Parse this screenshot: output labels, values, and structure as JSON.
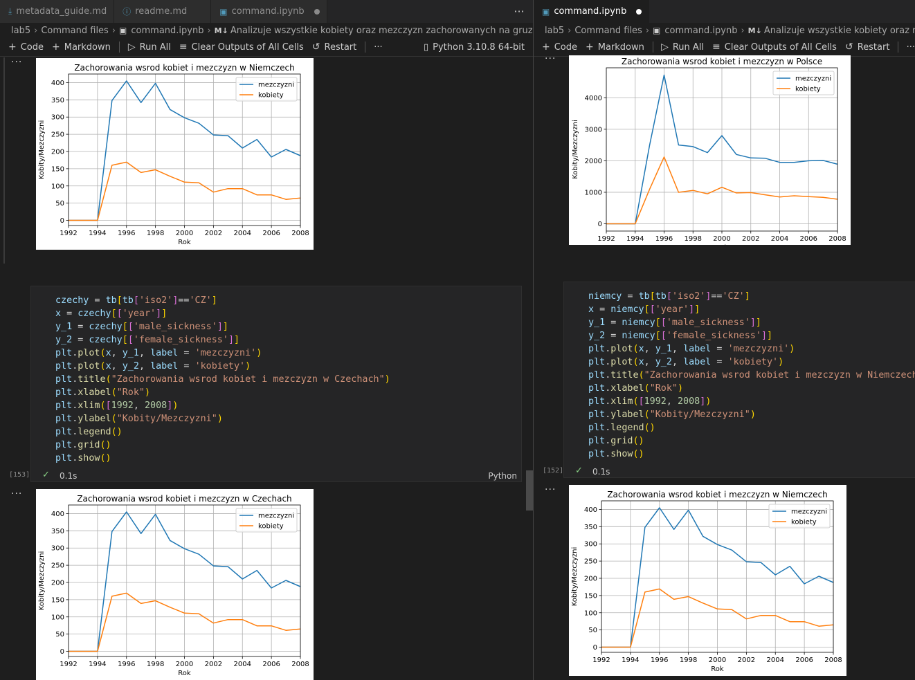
{
  "left": {
    "tabs": [
      {
        "label": "metadata_guide.md",
        "icon": "download-icon",
        "icon_color": "#519aba"
      },
      {
        "label": "readme.md",
        "icon": "info-icon",
        "icon_color": "#519aba"
      },
      {
        "label": "command.ipynb",
        "icon": "notebook-icon",
        "icon_color": "#519aba"
      }
    ],
    "breadcrumb": [
      "lab5",
      "Command files",
      "command.ipynb",
      "Analizuje wszystkie kobiety oraz mezczyzn zachorowanych na gruzlice zamieszkal"
    ],
    "toolbar": {
      "code": "Code",
      "markdown": "Markdown",
      "run_all": "Run All",
      "clear": "Clear Outputs of All Cells",
      "restart": "Restart",
      "more": "···",
      "kernel": "Python 3.10.8 64-bit"
    },
    "cell": {
      "exec": "[153]",
      "time": "0.1s",
      "lang": "Python"
    }
  },
  "right": {
    "tabs": [
      {
        "label": "command.ipynb",
        "icon": "notebook-icon",
        "icon_color": "#519aba"
      }
    ],
    "breadcrumb": [
      "lab5",
      "Command files",
      "command.ipynb",
      "Analizuje wszystkie kobiety oraz mezczyzn"
    ],
    "toolbar": {
      "code": "Code",
      "markdown": "Markdown",
      "run_all": "Run All",
      "clear": "Clear Outputs of All Cells",
      "restart": "Restart",
      "more": "···"
    },
    "cell": {
      "exec": "[152]",
      "time": "0.1s"
    }
  },
  "output_menu": "···",
  "series_colors": {
    "mezczyzni": "#1f77b4",
    "kobiety": "#ff7f0e"
  },
  "chart_data": [
    {
      "type": "line",
      "title": "Zachorowania wsrod kobiet i mezczyzn w Niemczech",
      "xlabel": "Rok",
      "ylabel": "Kobity/Mezczyzni",
      "x": [
        1992,
        1993,
        1994,
        1995,
        1996,
        1997,
        1998,
        1999,
        2000,
        2001,
        2002,
        2003,
        2004,
        2005,
        2006,
        2007,
        2008
      ],
      "xlim": [
        1992,
        2008
      ],
      "ylim": [
        -15,
        425
      ],
      "xticks": [
        1992,
        1994,
        1996,
        1998,
        2000,
        2002,
        2004,
        2006,
        2008
      ],
      "yticks": [
        0,
        50,
        100,
        150,
        200,
        250,
        300,
        350,
        400
      ],
      "grid": true,
      "legend": "top-right",
      "series": [
        {
          "name": "mezczyzni",
          "values": [
            0,
            0,
            0,
            348,
            405,
            342,
            398,
            322,
            298,
            282,
            248,
            246,
            210,
            235,
            184,
            206,
            188
          ]
        },
        {
          "name": "kobiety",
          "values": [
            0,
            0,
            0,
            160,
            169,
            139,
            147,
            128,
            111,
            109,
            82,
            92,
            92,
            74,
            74,
            61,
            65
          ]
        }
      ]
    },
    {
      "type": "line",
      "title": "Zachorowania wsrod kobiet i mezczyzn w Polsce",
      "xlabel": "Rok",
      "ylabel": "Kobity/Mezczyzni",
      "x": [
        1992,
        1993,
        1994,
        1995,
        1996,
        1997,
        1998,
        1999,
        2000,
        2001,
        2002,
        2003,
        2004,
        2005,
        2006,
        2007,
        2008
      ],
      "xlim": [
        1992,
        2008
      ],
      "ylim": [
        -230,
        4950
      ],
      "xticks": [
        1992,
        1994,
        1996,
        1998,
        2000,
        2002,
        2004,
        2006,
        2008
      ],
      "yticks": [
        0,
        1000,
        2000,
        3000,
        4000
      ],
      "grid": true,
      "legend": "top-right",
      "series": [
        {
          "name": "mezczyzni",
          "values": [
            0,
            0,
            0,
            2500,
            4720,
            2500,
            2450,
            2260,
            2800,
            2200,
            2090,
            2080,
            1950,
            1950,
            2000,
            2010,
            1890
          ]
        },
        {
          "name": "kobiety",
          "values": [
            0,
            0,
            0,
            1100,
            2120,
            1000,
            1060,
            950,
            1160,
            980,
            990,
            920,
            850,
            890,
            860,
            840,
            780
          ]
        }
      ]
    },
    {
      "type": "line",
      "title": "Zachorowania wsrod kobiet i mezczyzn w Czechach",
      "xlabel": "Rok",
      "ylabel": "Kobity/Mezczyzni",
      "x": [
        1992,
        1993,
        1994,
        1995,
        1996,
        1997,
        1998,
        1999,
        2000,
        2001,
        2002,
        2003,
        2004,
        2005,
        2006,
        2007,
        2008
      ],
      "xlim": [
        1992,
        2008
      ],
      "ylim": [
        -15,
        425
      ],
      "xticks": [
        1992,
        1994,
        1996,
        1998,
        2000,
        2002,
        2004,
        2006,
        2008
      ],
      "yticks": [
        0,
        50,
        100,
        150,
        200,
        250,
        300,
        350,
        400
      ],
      "grid": true,
      "legend": "top-right",
      "series": [
        {
          "name": "mezczyzni",
          "values": [
            0,
            0,
            0,
            348,
            405,
            342,
            398,
            322,
            298,
            282,
            248,
            246,
            210,
            235,
            184,
            206,
            188
          ]
        },
        {
          "name": "kobiety",
          "values": [
            0,
            0,
            0,
            160,
            169,
            139,
            147,
            128,
            111,
            109,
            82,
            92,
            92,
            74,
            74,
            61,
            65
          ]
        }
      ]
    },
    {
      "type": "line",
      "title": "Zachorowania wsrod kobiet i mezczyzn w Niemczech",
      "xlabel": "Rok",
      "ylabel": "Kobity/Mezczyzni",
      "x": [
        1992,
        1993,
        1994,
        1995,
        1996,
        1997,
        1998,
        1999,
        2000,
        2001,
        2002,
        2003,
        2004,
        2005,
        2006,
        2007,
        2008
      ],
      "xlim": [
        1992,
        2008
      ],
      "ylim": [
        -15,
        425
      ],
      "xticks": [
        1992,
        1994,
        1996,
        1998,
        2000,
        2002,
        2004,
        2006,
        2008
      ],
      "yticks": [
        0,
        50,
        100,
        150,
        200,
        250,
        300,
        350,
        400
      ],
      "grid": true,
      "legend": "top-right",
      "series": [
        {
          "name": "mezczyzni",
          "values": [
            0,
            0,
            0,
            348,
            405,
            342,
            398,
            322,
            298,
            282,
            248,
            246,
            210,
            235,
            184,
            206,
            188
          ]
        },
        {
          "name": "kobiety",
          "values": [
            0,
            0,
            0,
            160,
            169,
            139,
            147,
            128,
            111,
            109,
            82,
            92,
            92,
            74,
            74,
            61,
            65
          ]
        }
      ]
    }
  ],
  "code_left": [
    [
      [
        "var",
        "czechy"
      ],
      [
        "op",
        " = "
      ],
      [
        "var",
        "tb"
      ],
      [
        "br1",
        "["
      ],
      [
        "var",
        "tb"
      ],
      [
        "br2",
        "["
      ],
      [
        "str",
        "'iso2'"
      ],
      [
        "br2",
        "]"
      ],
      [
        "op",
        "=="
      ],
      [
        "str",
        "'CZ'"
      ],
      [
        "br1",
        "]"
      ]
    ],
    [
      [
        "var",
        "x"
      ],
      [
        "op",
        " = "
      ],
      [
        "var",
        "czechy"
      ],
      [
        "br1",
        "["
      ],
      [
        "br2",
        "["
      ],
      [
        "str",
        "'year'"
      ],
      [
        "br2",
        "]"
      ],
      [
        "br1",
        "]"
      ]
    ],
    [
      [
        "var",
        "y_1"
      ],
      [
        "op",
        " = "
      ],
      [
        "var",
        "czechy"
      ],
      [
        "br1",
        "["
      ],
      [
        "br2",
        "["
      ],
      [
        "str",
        "'male_sickness'"
      ],
      [
        "br2",
        "]"
      ],
      [
        "br1",
        "]"
      ]
    ],
    [
      [
        "var",
        "y_2"
      ],
      [
        "op",
        " = "
      ],
      [
        "var",
        "czechy"
      ],
      [
        "br1",
        "["
      ],
      [
        "br2",
        "["
      ],
      [
        "str",
        "'female_sickness'"
      ],
      [
        "br2",
        "]"
      ],
      [
        "br1",
        "]"
      ]
    ],
    [
      [
        "var",
        "plt"
      ],
      [
        "op",
        "."
      ],
      [
        "fn",
        "plot"
      ],
      [
        "br1",
        "("
      ],
      [
        "var",
        "x"
      ],
      [
        "op",
        ", "
      ],
      [
        "var",
        "y_1"
      ],
      [
        "op",
        ", "
      ],
      [
        "var",
        "label"
      ],
      [
        "op",
        " = "
      ],
      [
        "str",
        "'mezczyzni'"
      ],
      [
        "br1",
        ")"
      ]
    ],
    [
      [
        "var",
        "plt"
      ],
      [
        "op",
        "."
      ],
      [
        "fn",
        "plot"
      ],
      [
        "br1",
        "("
      ],
      [
        "var",
        "x"
      ],
      [
        "op",
        ", "
      ],
      [
        "var",
        "y_2"
      ],
      [
        "op",
        ", "
      ],
      [
        "var",
        "label"
      ],
      [
        "op",
        " = "
      ],
      [
        "str",
        "'kobiety'"
      ],
      [
        "br1",
        ")"
      ]
    ],
    [
      [
        "var",
        "plt"
      ],
      [
        "op",
        "."
      ],
      [
        "fn",
        "title"
      ],
      [
        "br1",
        "("
      ],
      [
        "str",
        "\"Zachorowania wsrod kobiet i mezczyzn w Czechach\""
      ],
      [
        "br1",
        ")"
      ]
    ],
    [
      [
        "var",
        "plt"
      ],
      [
        "op",
        "."
      ],
      [
        "fn",
        "xlabel"
      ],
      [
        "br1",
        "("
      ],
      [
        "str",
        "\"Rok\""
      ],
      [
        "br1",
        ")"
      ]
    ],
    [
      [
        "var",
        "plt"
      ],
      [
        "op",
        "."
      ],
      [
        "fn",
        "xlim"
      ],
      [
        "br1",
        "("
      ],
      [
        "br2",
        "["
      ],
      [
        "num",
        "1992"
      ],
      [
        "op",
        ", "
      ],
      [
        "num",
        "2008"
      ],
      [
        "br2",
        "]"
      ],
      [
        "br1",
        ")"
      ]
    ],
    [
      [
        "var",
        "plt"
      ],
      [
        "op",
        "."
      ],
      [
        "fn",
        "ylabel"
      ],
      [
        "br1",
        "("
      ],
      [
        "str",
        "\"Kobity/Mezczyzni\""
      ],
      [
        "br1",
        ")"
      ]
    ],
    [
      [
        "var",
        "plt"
      ],
      [
        "op",
        "."
      ],
      [
        "fn",
        "legend"
      ],
      [
        "br1",
        "()"
      ]
    ],
    [
      [
        "var",
        "plt"
      ],
      [
        "op",
        "."
      ],
      [
        "fn",
        "grid"
      ],
      [
        "br1",
        "()"
      ]
    ],
    [
      [
        "var",
        "plt"
      ],
      [
        "op",
        "."
      ],
      [
        "fn",
        "show"
      ],
      [
        "br1",
        "()"
      ]
    ]
  ],
  "code_right": [
    [
      [
        "var",
        "niemcy"
      ],
      [
        "op",
        " = "
      ],
      [
        "var",
        "tb"
      ],
      [
        "br1",
        "["
      ],
      [
        "var",
        "tb"
      ],
      [
        "br2",
        "["
      ],
      [
        "str",
        "'iso2'"
      ],
      [
        "br2",
        "]"
      ],
      [
        "op",
        "=="
      ],
      [
        "str",
        "'CZ'"
      ],
      [
        "br1",
        "]"
      ]
    ],
    [
      [
        "var",
        "x"
      ],
      [
        "op",
        " = "
      ],
      [
        "var",
        "niemcy"
      ],
      [
        "br1",
        "["
      ],
      [
        "br2",
        "["
      ],
      [
        "str",
        "'year'"
      ],
      [
        "br2",
        "]"
      ],
      [
        "br1",
        "]"
      ]
    ],
    [
      [
        "var",
        "y_1"
      ],
      [
        "op",
        " = "
      ],
      [
        "var",
        "niemcy"
      ],
      [
        "br1",
        "["
      ],
      [
        "br2",
        "["
      ],
      [
        "str",
        "'male_sickness'"
      ],
      [
        "br2",
        "]"
      ],
      [
        "br1",
        "]"
      ]
    ],
    [
      [
        "var",
        "y_2"
      ],
      [
        "op",
        " = "
      ],
      [
        "var",
        "niemcy"
      ],
      [
        "br1",
        "["
      ],
      [
        "br2",
        "["
      ],
      [
        "str",
        "'female_sickness'"
      ],
      [
        "br2",
        "]"
      ],
      [
        "br1",
        "]"
      ]
    ],
    [
      [
        "var",
        "plt"
      ],
      [
        "op",
        "."
      ],
      [
        "fn",
        "plot"
      ],
      [
        "br1",
        "("
      ],
      [
        "var",
        "x"
      ],
      [
        "op",
        ", "
      ],
      [
        "var",
        "y_1"
      ],
      [
        "op",
        ", "
      ],
      [
        "var",
        "label"
      ],
      [
        "op",
        " = "
      ],
      [
        "str",
        "'mezczyzni'"
      ],
      [
        "br1",
        ")"
      ]
    ],
    [
      [
        "var",
        "plt"
      ],
      [
        "op",
        "."
      ],
      [
        "fn",
        "plot"
      ],
      [
        "br1",
        "("
      ],
      [
        "var",
        "x"
      ],
      [
        "op",
        ", "
      ],
      [
        "var",
        "y_2"
      ],
      [
        "op",
        ", "
      ],
      [
        "var",
        "label"
      ],
      [
        "op",
        " = "
      ],
      [
        "str",
        "'kobiety'"
      ],
      [
        "br1",
        ")"
      ]
    ],
    [
      [
        "var",
        "plt"
      ],
      [
        "op",
        "."
      ],
      [
        "fn",
        "title"
      ],
      [
        "br1",
        "("
      ],
      [
        "str",
        "\"Zachorowania wsrod kobiet i mezczyzn w Niemczech\""
      ],
      [
        "br1",
        ")"
      ]
    ],
    [
      [
        "var",
        "plt"
      ],
      [
        "op",
        "."
      ],
      [
        "fn",
        "xlabel"
      ],
      [
        "br1",
        "("
      ],
      [
        "str",
        "\"Rok\""
      ],
      [
        "br1",
        ")"
      ]
    ],
    [
      [
        "var",
        "plt"
      ],
      [
        "op",
        "."
      ],
      [
        "fn",
        "xlim"
      ],
      [
        "br1",
        "("
      ],
      [
        "br2",
        "["
      ],
      [
        "num",
        "1992"
      ],
      [
        "op",
        ", "
      ],
      [
        "num",
        "2008"
      ],
      [
        "br2",
        "]"
      ],
      [
        "br1",
        ")"
      ]
    ],
    [
      [
        "var",
        "plt"
      ],
      [
        "op",
        "."
      ],
      [
        "fn",
        "ylabel"
      ],
      [
        "br1",
        "("
      ],
      [
        "str",
        "\"Kobity/Mezczyzni\""
      ],
      [
        "br1",
        ")"
      ]
    ],
    [
      [
        "var",
        "plt"
      ],
      [
        "op",
        "."
      ],
      [
        "fn",
        "legend"
      ],
      [
        "br1",
        "()"
      ]
    ],
    [
      [
        "var",
        "plt"
      ],
      [
        "op",
        "."
      ],
      [
        "fn",
        "grid"
      ],
      [
        "br1",
        "()"
      ]
    ],
    [
      [
        "var",
        "plt"
      ],
      [
        "op",
        "."
      ],
      [
        "fn",
        "show"
      ],
      [
        "br1",
        "()"
      ]
    ]
  ]
}
